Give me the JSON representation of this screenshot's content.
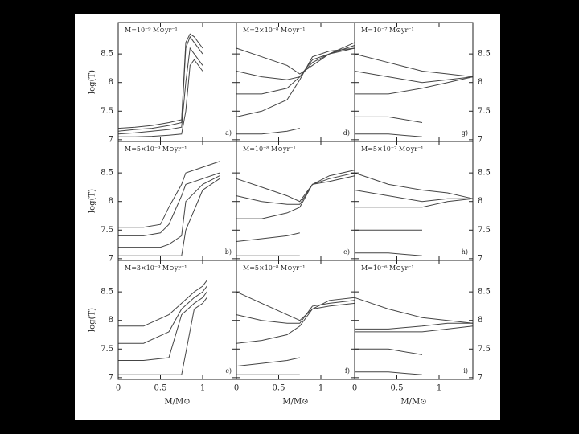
{
  "chart_data": [
    {
      "type": "line",
      "title": "M=10⁻⁹ M⊙yr⁻¹",
      "panel_label": "a)",
      "ylabel": "log(T)",
      "ytick_labels": "left",
      "xtick_labels": false,
      "color": "#444",
      "xlim": [
        0,
        1.4
      ],
      "ylim": [
        6.97,
        9.05
      ],
      "xticks": [
        0,
        0.5,
        1
      ],
      "yticks": [
        7,
        7.5,
        8,
        8.5
      ],
      "x": [
        0,
        0.2,
        0.4,
        0.6,
        0.75,
        0.8,
        0.85,
        0.9,
        1.0
      ],
      "series": [
        {
          "values": [
            7.2,
            7.22,
            7.25,
            7.3,
            7.35,
            8.7,
            8.85,
            8.8,
            8.6
          ]
        },
        {
          "values": [
            7.15,
            7.18,
            7.2,
            7.25,
            7.3,
            8.6,
            8.8,
            8.7,
            8.5
          ]
        },
        {
          "values": [
            7.1,
            7.12,
            7.15,
            7.18,
            7.22,
            8.0,
            8.6,
            8.5,
            8.3
          ]
        },
        {
          "values": [
            7.05,
            7.05,
            7.06,
            7.08,
            7.1,
            7.5,
            8.3,
            8.4,
            8.2
          ]
        }
      ]
    },
    {
      "type": "line",
      "title": "M=2×10⁻⁸ M⊙yr⁻¹",
      "panel_label": "d)",
      "ytick_labels": "none",
      "xtick_labels": false,
      "color": "#444",
      "xlim": [
        0,
        1.4
      ],
      "ylim": [
        6.97,
        9.05
      ],
      "xticks": [
        0,
        0.5,
        1
      ],
      "yticks": [
        7,
        7.5,
        8,
        8.5
      ],
      "x": [
        0,
        0.3,
        0.6,
        0.75,
        0.9,
        1.1,
        1.4
      ],
      "series": [
        {
          "values": [
            8.6,
            8.45,
            8.3,
            8.15,
            8.3,
            8.5,
            8.7
          ]
        },
        {
          "values": [
            8.2,
            8.1,
            8.05,
            8.1,
            8.35,
            8.5,
            8.65
          ]
        },
        {
          "values": [
            7.8,
            7.8,
            7.9,
            8.1,
            8.4,
            8.5,
            8.6
          ]
        },
        {
          "values": [
            7.4,
            7.5,
            7.7,
            8.05,
            8.45,
            8.55,
            8.6
          ]
        },
        {
          "values": [
            7.1,
            7.1,
            7.15,
            7.2,
            null,
            null,
            null
          ]
        }
      ]
    },
    {
      "type": "line",
      "title": "M=10⁻⁷ M⊙yr⁻¹",
      "panel_label": "g)",
      "ytick_labels": "right",
      "xtick_labels": false,
      "color": "#444",
      "xlim": [
        0,
        1.4
      ],
      "ylim": [
        6.97,
        9.05
      ],
      "xticks": [
        0,
        0.5,
        1
      ],
      "yticks": [
        7,
        7.5,
        8,
        8.5
      ],
      "x": [
        0,
        0.4,
        0.8,
        1.1,
        1.4
      ],
      "series": [
        {
          "values": [
            8.5,
            8.35,
            8.2,
            8.15,
            8.1
          ]
        },
        {
          "values": [
            8.2,
            8.1,
            8.0,
            8.05,
            8.1
          ]
        },
        {
          "values": [
            7.8,
            7.8,
            7.9,
            8.0,
            8.1
          ]
        },
        {
          "values": [
            7.4,
            7.4,
            7.3,
            null,
            null
          ]
        },
        {
          "values": [
            7.1,
            7.1,
            7.05,
            null,
            null
          ]
        }
      ]
    },
    {
      "type": "line",
      "title": "M=5×10⁻⁹ M⊙yr⁻¹",
      "panel_label": "b)",
      "ylabel": "log(T)",
      "ytick_labels": "left",
      "xtick_labels": false,
      "color": "#444",
      "xlim": [
        0,
        1.4
      ],
      "ylim": [
        6.97,
        9.05
      ],
      "xticks": [
        0,
        0.5,
        1
      ],
      "yticks": [
        7,
        7.5,
        8,
        8.5
      ],
      "x": [
        0,
        0.3,
        0.5,
        0.6,
        0.75,
        0.8,
        1.0,
        1.2
      ],
      "series": [
        {
          "values": [
            7.55,
            7.55,
            7.6,
            7.9,
            8.3,
            8.5,
            8.6,
            8.7
          ]
        },
        {
          "values": [
            7.4,
            7.4,
            7.45,
            7.6,
            8.1,
            8.3,
            8.4,
            8.5
          ]
        },
        {
          "values": [
            7.2,
            7.2,
            7.2,
            7.25,
            7.4,
            8.0,
            8.3,
            8.45
          ]
        },
        {
          "values": [
            7.05,
            7.05,
            7.05,
            7.05,
            7.05,
            7.5,
            8.2,
            8.4
          ]
        }
      ]
    },
    {
      "type": "line",
      "title": "M=10⁻⁸ M⊙yr⁻¹",
      "panel_label": "e)",
      "ytick_labels": "none",
      "xtick_labels": false,
      "color": "#444",
      "xlim": [
        0,
        1.4
      ],
      "ylim": [
        6.97,
        9.05
      ],
      "xticks": [
        0,
        0.5,
        1
      ],
      "yticks": [
        7,
        7.5,
        8,
        8.5
      ],
      "x": [
        0,
        0.3,
        0.6,
        0.75,
        0.9,
        1.1,
        1.4
      ],
      "series": [
        {
          "values": [
            8.4,
            8.25,
            8.1,
            8.0,
            8.3,
            8.45,
            8.55
          ]
        },
        {
          "values": [
            8.1,
            8.0,
            7.95,
            7.95,
            8.3,
            8.4,
            8.5
          ]
        },
        {
          "values": [
            7.7,
            7.7,
            7.8,
            7.9,
            8.3,
            8.35,
            8.45
          ]
        },
        {
          "values": [
            7.3,
            7.35,
            7.4,
            7.45,
            null,
            null,
            null
          ]
        },
        {
          "values": [
            7.05,
            7.05,
            7.05,
            7.05,
            null,
            null,
            null
          ]
        }
      ]
    },
    {
      "type": "line",
      "title": "M=5×10⁻⁷ M⊙yr⁻¹",
      "panel_label": "h)",
      "ytick_labels": "right",
      "xtick_labels": false,
      "color": "#444",
      "xlim": [
        0,
        1.4
      ],
      "ylim": [
        6.97,
        9.05
      ],
      "xticks": [
        0,
        0.5,
        1
      ],
      "yticks": [
        7,
        7.5,
        8,
        8.5
      ],
      "x": [
        0,
        0.4,
        0.8,
        1.1,
        1.4
      ],
      "series": [
        {
          "values": [
            8.5,
            8.3,
            8.2,
            8.15,
            8.05
          ]
        },
        {
          "values": [
            8.2,
            8.1,
            8.0,
            8.05,
            8.05
          ]
        },
        {
          "values": [
            7.9,
            7.9,
            7.9,
            8.0,
            8.05
          ]
        },
        {
          "values": [
            7.5,
            7.5,
            7.5,
            null,
            null
          ]
        },
        {
          "values": [
            7.1,
            7.1,
            7.05,
            null,
            null
          ]
        }
      ]
    },
    {
      "type": "line",
      "title": "M=3×10⁻⁹ M⊙yr⁻¹",
      "panel_label": "c)",
      "ylabel": "log(T)",
      "xlabel": "M/M⊙",
      "ytick_labels": "left",
      "xtick_labels": true,
      "color": "#444",
      "xlim": [
        0,
        1.4
      ],
      "ylim": [
        6.97,
        9.05
      ],
      "xticks": [
        0,
        0.5,
        1
      ],
      "yticks": [
        7,
        7.5,
        8,
        8.5
      ],
      "x": [
        0,
        0.3,
        0.6,
        0.75,
        0.9,
        1.0,
        1.05
      ],
      "series": [
        {
          "values": [
            7.9,
            7.9,
            8.1,
            8.3,
            8.5,
            8.6,
            8.7
          ]
        },
        {
          "values": [
            7.6,
            7.6,
            7.8,
            8.2,
            8.4,
            8.5,
            8.6
          ]
        },
        {
          "values": [
            7.3,
            7.3,
            7.35,
            8.1,
            8.3,
            8.4,
            8.5
          ]
        },
        {
          "values": [
            7.05,
            7.05,
            7.05,
            7.05,
            8.2,
            8.3,
            8.4
          ]
        }
      ]
    },
    {
      "type": "line",
      "title": "M=5×10⁻⁸ M⊙yr⁻¹",
      "panel_label": "f)",
      "xlabel": "M/M⊙",
      "ytick_labels": "none",
      "xtick_labels": true,
      "color": "#444",
      "xlim": [
        0,
        1.4
      ],
      "ylim": [
        6.97,
        9.05
      ],
      "xticks": [
        0,
        0.5,
        1
      ],
      "yticks": [
        7,
        7.5,
        8,
        8.5
      ],
      "x": [
        0,
        0.3,
        0.6,
        0.75,
        0.9,
        1.1,
        1.4
      ],
      "series": [
        {
          "values": [
            8.5,
            8.3,
            8.1,
            8.0,
            8.2,
            8.35,
            8.4
          ]
        },
        {
          "values": [
            8.1,
            8.0,
            7.95,
            7.95,
            8.25,
            8.3,
            8.35
          ]
        },
        {
          "values": [
            7.6,
            7.65,
            7.75,
            7.9,
            8.2,
            8.25,
            8.3
          ]
        },
        {
          "values": [
            7.2,
            7.25,
            7.3,
            7.35,
            null,
            null,
            null
          ]
        },
        {
          "values": [
            7.05,
            7.05,
            7.05,
            7.05,
            null,
            null,
            null
          ]
        }
      ]
    },
    {
      "type": "line",
      "title": "M=10⁻⁶ M⊙yr⁻¹",
      "panel_label": "i)",
      "xlabel": "M/M⊙",
      "ytick_labels": "right",
      "xtick_labels": true,
      "color": "#444",
      "xlim": [
        0,
        1.4
      ],
      "ylim": [
        6.97,
        9.05
      ],
      "xticks": [
        0,
        0.5,
        1
      ],
      "yticks": [
        7,
        7.5,
        8,
        8.5
      ],
      "x": [
        0,
        0.4,
        0.8,
        1.1,
        1.4
      ],
      "series": [
        {
          "values": [
            8.4,
            8.2,
            8.05,
            8.0,
            7.95
          ]
        },
        {
          "values": [
            7.85,
            7.85,
            7.9,
            7.95,
            7.95
          ]
        },
        {
          "values": [
            7.8,
            7.8,
            7.8,
            7.85,
            7.9
          ]
        },
        {
          "values": [
            7.5,
            7.5,
            7.4,
            null,
            null
          ]
        },
        {
          "values": [
            7.1,
            7.1,
            7.05,
            null,
            null
          ]
        }
      ]
    }
  ]
}
